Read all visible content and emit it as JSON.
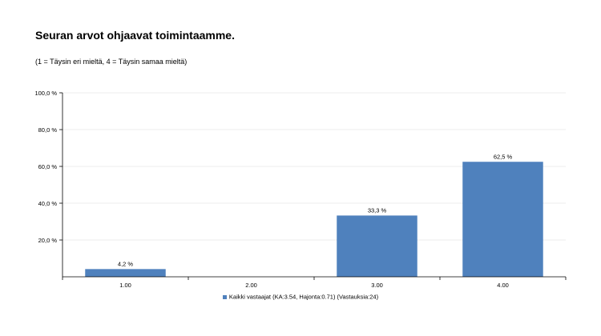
{
  "header": {
    "title": "Seuran arvot ohjaavat toimintaamme.",
    "subtitle": "(1 = Täysin eri mieltä, 4 = Täysin samaa mieltä)"
  },
  "chart_data": {
    "type": "bar",
    "title": "",
    "xlabel": "",
    "ylabel": "",
    "categories": [
      "1.00",
      "2.00",
      "3.00",
      "4.00"
    ],
    "series": [
      {
        "name": "Kaikki vastaajat (KA:3.54, Hajonta:0.71) (Vastauksia:24)",
        "values": [
          4.2,
          0,
          33.3,
          62.5
        ],
        "labels": [
          "4,2 %",
          "",
          "33,3 %",
          "62,5 %"
        ],
        "color": "#4f81bd"
      }
    ],
    "ylim": [
      0,
      100
    ],
    "yticks": [
      20,
      40,
      60,
      80,
      100
    ],
    "ytick_labels": [
      "20,0 %",
      "40,0 %",
      "60,0 %",
      "80,0 %",
      "100,0 %"
    ],
    "grid": true,
    "legend_position": "bottom"
  }
}
